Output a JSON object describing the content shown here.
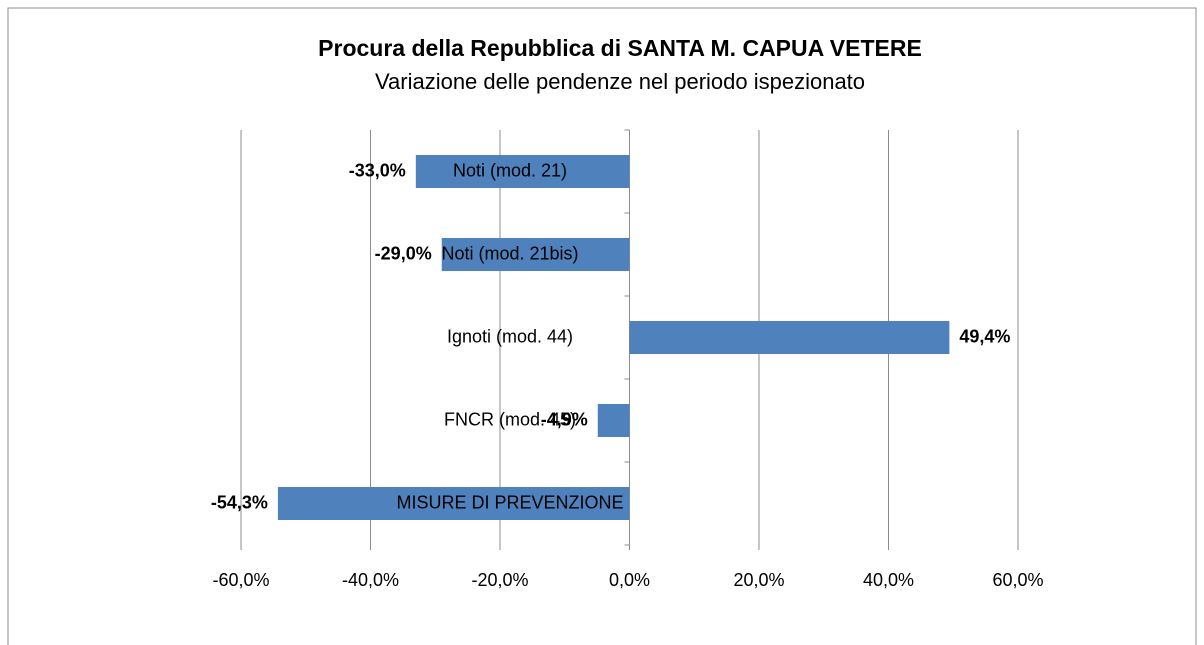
{
  "chart_data": {
    "type": "bar",
    "orientation": "horizontal",
    "title": "Procura della Repubblica di SANTA M. CAPUA VETERE",
    "subtitle": "Variazione delle pendenze nel periodo ispezionato",
    "categories": [
      "Noti (mod. 21)",
      "Noti (mod. 21bis)",
      "Ignoti (mod. 44)",
      "FNCR (mod. 45)",
      "MISURE DI PREVENZIONE"
    ],
    "values": [
      -33.0,
      -29.0,
      49.4,
      -4.9,
      -54.3
    ],
    "value_labels": [
      "-33,0%",
      "-29,0%",
      "49,4%",
      "-4,9%",
      "-54,3%"
    ],
    "color": "#4f81bd",
    "xlim": [
      -60,
      60
    ],
    "xticks": [
      {
        "value": -60,
        "label": "-60,0%"
      },
      {
        "value": -40,
        "label": "-40,0%"
      },
      {
        "value": -20,
        "label": "-20,0%"
      },
      {
        "value": 0,
        "label": "0,0%"
      },
      {
        "value": 20,
        "label": "20,0%"
      },
      {
        "value": 40,
        "label": "40,0%"
      },
      {
        "value": 60,
        "label": "60,0%"
      }
    ],
    "grid": true
  }
}
